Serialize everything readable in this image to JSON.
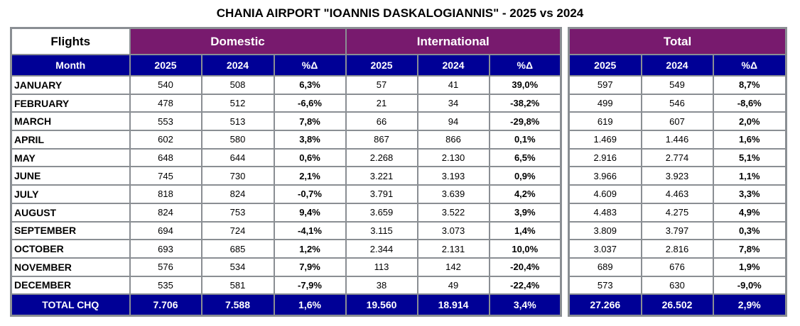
{
  "title": "CHANIA AIRPORT \"IOANNIS DASKALOGIANNIS\" - 2025 vs 2024",
  "headers": {
    "flights": "Flights",
    "month": "Month",
    "domestic": "Domestic",
    "international": "International",
    "total": "Total",
    "y2025": "2025",
    "y2024": "2024",
    "pct": "%Δ"
  },
  "colors": {
    "group_header": "#781a6e",
    "sub_header": "#000096",
    "border": "#8a8e93"
  },
  "rows": [
    {
      "month": "JANUARY",
      "dom": [
        "540",
        "508",
        "6,3%"
      ],
      "intl": [
        "57",
        "41",
        "39,0%"
      ],
      "total": [
        "597",
        "549",
        "8,7%"
      ]
    },
    {
      "month": "FEBRUARY",
      "dom": [
        "478",
        "512",
        "-6,6%"
      ],
      "intl": [
        "21",
        "34",
        "-38,2%"
      ],
      "total": [
        "499",
        "546",
        "-8,6%"
      ]
    },
    {
      "month": "MARCH",
      "dom": [
        "553",
        "513",
        "7,8%"
      ],
      "intl": [
        "66",
        "94",
        "-29,8%"
      ],
      "total": [
        "619",
        "607",
        "2,0%"
      ]
    },
    {
      "month": "APRIL",
      "dom": [
        "602",
        "580",
        "3,8%"
      ],
      "intl": [
        "867",
        "866",
        "0,1%"
      ],
      "total": [
        "1.469",
        "1.446",
        "1,6%"
      ]
    },
    {
      "month": "MAY",
      "dom": [
        "648",
        "644",
        "0,6%"
      ],
      "intl": [
        "2.268",
        "2.130",
        "6,5%"
      ],
      "total": [
        "2.916",
        "2.774",
        "5,1%"
      ]
    },
    {
      "month": "JUNE",
      "dom": [
        "745",
        "730",
        "2,1%"
      ],
      "intl": [
        "3.221",
        "3.193",
        "0,9%"
      ],
      "total": [
        "3.966",
        "3.923",
        "1,1%"
      ]
    },
    {
      "month": "JULY",
      "dom": [
        "818",
        "824",
        "-0,7%"
      ],
      "intl": [
        "3.791",
        "3.639",
        "4,2%"
      ],
      "total": [
        "4.609",
        "4.463",
        "3,3%"
      ]
    },
    {
      "month": "AUGUST",
      "dom": [
        "824",
        "753",
        "9,4%"
      ],
      "intl": [
        "3.659",
        "3.522",
        "3,9%"
      ],
      "total": [
        "4.483",
        "4.275",
        "4,9%"
      ]
    },
    {
      "month": "SEPTEMBER",
      "dom": [
        "694",
        "724",
        "-4,1%"
      ],
      "intl": [
        "3.115",
        "3.073",
        "1,4%"
      ],
      "total": [
        "3.809",
        "3.797",
        "0,3%"
      ]
    },
    {
      "month": "OCTOBER",
      "dom": [
        "693",
        "685",
        "1,2%"
      ],
      "intl": [
        "2.344",
        "2.131",
        "10,0%"
      ],
      "total": [
        "3.037",
        "2.816",
        "7,8%"
      ]
    },
    {
      "month": "NOVEMBER",
      "dom": [
        "576",
        "534",
        "7,9%"
      ],
      "intl": [
        "113",
        "142",
        "-20,4%"
      ],
      "total": [
        "689",
        "676",
        "1,9%"
      ]
    },
    {
      "month": "DECEMBER",
      "dom": [
        "535",
        "581",
        "-7,9%"
      ],
      "intl": [
        "38",
        "49",
        "-22,4%"
      ],
      "total": [
        "573",
        "630",
        "-9,0%"
      ]
    }
  ],
  "totals": {
    "label": "TOTAL CHQ",
    "dom": [
      "7.706",
      "7.588",
      "1,6%"
    ],
    "intl": [
      "19.560",
      "18.914",
      "3,4%"
    ],
    "total": [
      "27.266",
      "26.502",
      "2,9%"
    ]
  }
}
